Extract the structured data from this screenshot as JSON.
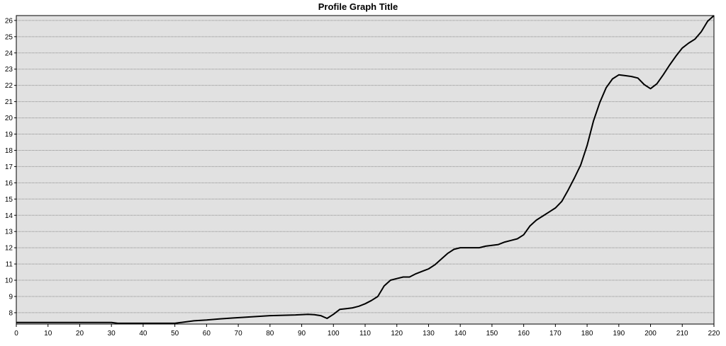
{
  "chart_data": {
    "type": "line",
    "title": "Profile Graph Title",
    "xlabel": "",
    "ylabel": "",
    "xlim": [
      0,
      220
    ],
    "ylim": [
      7.3,
      26.3
    ],
    "x_ticks": [
      0,
      10,
      20,
      30,
      40,
      50,
      60,
      70,
      80,
      90,
      100,
      110,
      120,
      130,
      140,
      150,
      160,
      170,
      180,
      190,
      200,
      210,
      220
    ],
    "y_ticks": [
      8,
      9,
      10,
      11,
      12,
      13,
      14,
      15,
      16,
      17,
      18,
      19,
      20,
      21,
      22,
      23,
      24,
      25,
      26
    ],
    "grid": true,
    "colors": {
      "background": "#e1e1e1",
      "plot_area": "#e1e1e1",
      "line": "#000000",
      "grid": "#8a8a8a"
    },
    "series": [
      {
        "x": [
          0,
          10,
          20,
          30,
          32,
          40,
          50,
          52,
          56,
          60,
          64,
          68,
          72,
          76,
          80,
          84,
          88,
          92,
          94,
          96,
          98,
          100,
          102,
          104,
          106,
          108,
          110,
          112,
          114,
          116,
          118,
          120,
          122,
          124,
          126,
          128,
          130,
          132,
          134,
          136,
          138,
          140,
          142,
          144,
          146,
          148,
          150,
          152,
          154,
          156,
          158,
          160,
          162,
          164,
          166,
          168,
          170,
          172,
          174,
          176,
          178,
          180,
          182,
          184,
          186,
          188,
          190,
          192,
          194,
          196,
          198,
          200,
          202,
          204,
          206,
          208,
          210,
          212,
          214,
          216,
          218,
          220
        ],
        "y": [
          7.4,
          7.4,
          7.4,
          7.4,
          7.35,
          7.35,
          7.35,
          7.4,
          7.5,
          7.55,
          7.62,
          7.67,
          7.72,
          7.77,
          7.82,
          7.84,
          7.86,
          7.9,
          7.88,
          7.82,
          7.65,
          7.9,
          8.2,
          8.25,
          8.3,
          8.4,
          8.55,
          8.75,
          9.0,
          9.65,
          10.0,
          10.1,
          10.2,
          10.2,
          10.4,
          10.55,
          10.7,
          10.95,
          11.3,
          11.65,
          11.9,
          12.0,
          12.0,
          12.0,
          12.0,
          12.1,
          12.15,
          12.2,
          12.35,
          12.45,
          12.55,
          12.8,
          13.35,
          13.7,
          13.95,
          14.2,
          14.45,
          14.85,
          15.55,
          16.3,
          17.1,
          18.3,
          19.8,
          20.95,
          21.85,
          22.4,
          22.65,
          22.6,
          22.55,
          22.45,
          22.05,
          21.8,
          22.1,
          22.65,
          23.25,
          23.8,
          24.3,
          24.6,
          24.85,
          25.3,
          25.95,
          26.3
        ]
      }
    ]
  }
}
